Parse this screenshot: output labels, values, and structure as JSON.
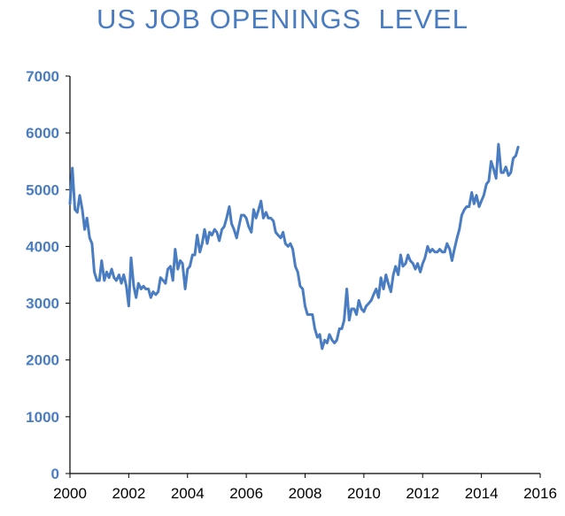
{
  "chart_data": {
    "type": "line",
    "title": "US JOB OPENINGS  LEVEL",
    "xlabel": "",
    "ylabel": "",
    "xlim": [
      2000,
      2016
    ],
    "ylim": [
      0,
      7000
    ],
    "x_ticks": [
      "2000",
      "2002",
      "2004",
      "2006",
      "2008",
      "2010",
      "2012",
      "2014",
      "2016"
    ],
    "y_ticks": [
      "0",
      "1000",
      "2000",
      "3000",
      "4000",
      "5000",
      "6000",
      "7000"
    ],
    "grid": false,
    "legend": "none",
    "line_color": "#4a7cc2",
    "series": [
      {
        "x": [
          2000.0,
          2000.08,
          2000.17,
          2000.25,
          2000.33,
          2000.42,
          2000.5,
          2000.58,
          2000.67,
          2000.75,
          2000.83,
          2000.92,
          2001.0,
          2001.08,
          2001.17,
          2001.25,
          2001.33,
          2001.42,
          2001.5,
          2001.58,
          2001.67,
          2001.75,
          2001.83,
          2001.92,
          2002.0,
          2002.08,
          2002.17,
          2002.25,
          2002.33,
          2002.42,
          2002.5,
          2002.58,
          2002.67,
          2002.75,
          2002.83,
          2002.92,
          2003.0,
          2003.08,
          2003.17,
          2003.25,
          2003.33,
          2003.42,
          2003.5,
          2003.58,
          2003.67,
          2003.75,
          2003.83,
          2003.92,
          2004.0,
          2004.08,
          2004.17,
          2004.25,
          2004.33,
          2004.42,
          2004.5,
          2004.58,
          2004.67,
          2004.75,
          2004.83,
          2004.92,
          2005.0,
          2005.08,
          2005.17,
          2005.25,
          2005.33,
          2005.42,
          2005.5,
          2005.58,
          2005.67,
          2005.75,
          2005.83,
          2005.92,
          2006.0,
          2006.08,
          2006.17,
          2006.25,
          2006.33,
          2006.42,
          2006.5,
          2006.58,
          2006.67,
          2006.75,
          2006.83,
          2006.92,
          2007.0,
          2007.08,
          2007.17,
          2007.25,
          2007.33,
          2007.42,
          2007.5,
          2007.58,
          2007.67,
          2007.75,
          2007.83,
          2007.92,
          2008.0,
          2008.08,
          2008.17,
          2008.25,
          2008.33,
          2008.42,
          2008.5,
          2008.58,
          2008.67,
          2008.75,
          2008.83,
          2008.92,
          2009.0,
          2009.08,
          2009.17,
          2009.25,
          2009.33,
          2009.42,
          2009.5,
          2009.58,
          2009.67,
          2009.75,
          2009.83,
          2009.92,
          2010.0,
          2010.08,
          2010.17,
          2010.25,
          2010.33,
          2010.42,
          2010.5,
          2010.58,
          2010.67,
          2010.75,
          2010.83,
          2010.92,
          2011.0,
          2011.08,
          2011.17,
          2011.25,
          2011.33,
          2011.42,
          2011.5,
          2011.58,
          2011.67,
          2011.75,
          2011.83,
          2011.92,
          2012.0,
          2012.08,
          2012.17,
          2012.25,
          2012.33,
          2012.42,
          2012.5,
          2012.58,
          2012.67,
          2012.75,
          2012.83,
          2012.92,
          2013.0,
          2013.08,
          2013.17,
          2013.25,
          2013.33,
          2013.42,
          2013.5,
          2013.58,
          2013.67,
          2013.75,
          2013.83,
          2013.92,
          2014.0,
          2014.08,
          2014.17,
          2014.25,
          2014.33,
          2014.42,
          2014.5,
          2014.58,
          2014.67,
          2014.75,
          2014.83,
          2014.92,
          2015.0,
          2015.08,
          2015.17,
          2015.25
        ],
        "values": [
          4750,
          5380,
          4650,
          4600,
          4900,
          4650,
          4300,
          4500,
          4150,
          4050,
          3550,
          3400,
          3400,
          3750,
          3400,
          3550,
          3450,
          3600,
          3450,
          3400,
          3500,
          3350,
          3500,
          3300,
          2950,
          3800,
          3300,
          3100,
          3350,
          3250,
          3300,
          3250,
          3250,
          3100,
          3200,
          3150,
          3200,
          3450,
          3400,
          3350,
          3600,
          3650,
          3400,
          3950,
          3600,
          3750,
          3700,
          3250,
          3600,
          3650,
          3850,
          3850,
          4200,
          3900,
          4050,
          4300,
          4050,
          4250,
          4200,
          4300,
          4250,
          4100,
          4300,
          4350,
          4500,
          4700,
          4400,
          4300,
          4150,
          4350,
          4550,
          4550,
          4500,
          4350,
          4250,
          4650,
          4500,
          4650,
          4800,
          4500,
          4600,
          4500,
          4500,
          4450,
          4250,
          4200,
          4150,
          4250,
          4050,
          4000,
          4050,
          3950,
          3650,
          3550,
          3300,
          3250,
          2950,
          2800,
          2800,
          2800,
          2550,
          2400,
          2450,
          2200,
          2350,
          2300,
          2450,
          2350,
          2300,
          2350,
          2550,
          2550,
          2700,
          3250,
          2700,
          2900,
          2900,
          2800,
          3050,
          2900,
          2850,
          2950,
          3000,
          3050,
          3150,
          3250,
          3100,
          3450,
          3250,
          3500,
          3350,
          3200,
          3500,
          3650,
          3500,
          3850,
          3650,
          3700,
          3850,
          3750,
          3700,
          3600,
          3700,
          3550,
          3700,
          3800,
          4000,
          3900,
          3950,
          3900,
          3900,
          3950,
          3900,
          3900,
          4050,
          3950,
          3750,
          3950,
          4150,
          4300,
          4550,
          4650,
          4700,
          4700,
          4950,
          4750,
          4900,
          4700,
          4800,
          4900,
          5100,
          5150,
          5500,
          5350,
          5200,
          5800,
          5300,
          5300,
          5400,
          5250,
          5300,
          5550,
          5600,
          5750
        ]
      }
    ]
  }
}
